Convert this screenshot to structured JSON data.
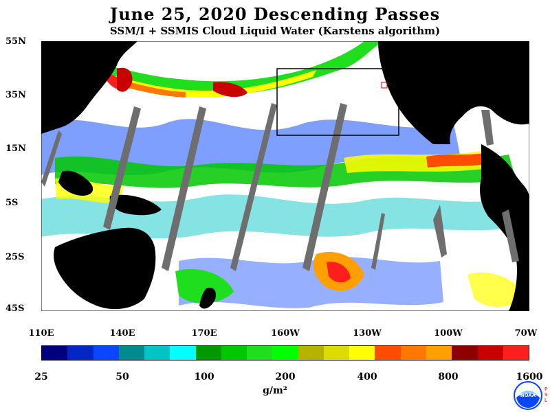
{
  "title": "June 25, 2020  Descending Passes",
  "subtitle": "SSM/I + SSMIS Cloud Liquid Water (Karstens algorithm)",
  "lat_labels": [
    "55N",
    "35N",
    "15N",
    "5S",
    "25S",
    "45S"
  ],
  "lon_labels": [
    "110E",
    "140E",
    "170E",
    "160W",
    "130W",
    "100W",
    "70W"
  ],
  "colorbar": {
    "colors": [
      "#00007f",
      "#0026c4",
      "#0a46ff",
      "#008c8c",
      "#00c4c4",
      "#00ffff",
      "#009a00",
      "#00c800",
      "#1ede1e",
      "#00ff00",
      "#b4b400",
      "#dcdc00",
      "#ffff00",
      "#ff4d00",
      "#ff7800",
      "#ff9f00",
      "#8c0000",
      "#c80000",
      "#ff1e1e"
    ],
    "tick_labels": [
      "25",
      "50",
      "100",
      "200",
      "400",
      "800",
      "1600"
    ]
  },
  "units": "g/m²",
  "logo": {
    "text": "NOAA",
    "side_text": "PSL"
  }
}
